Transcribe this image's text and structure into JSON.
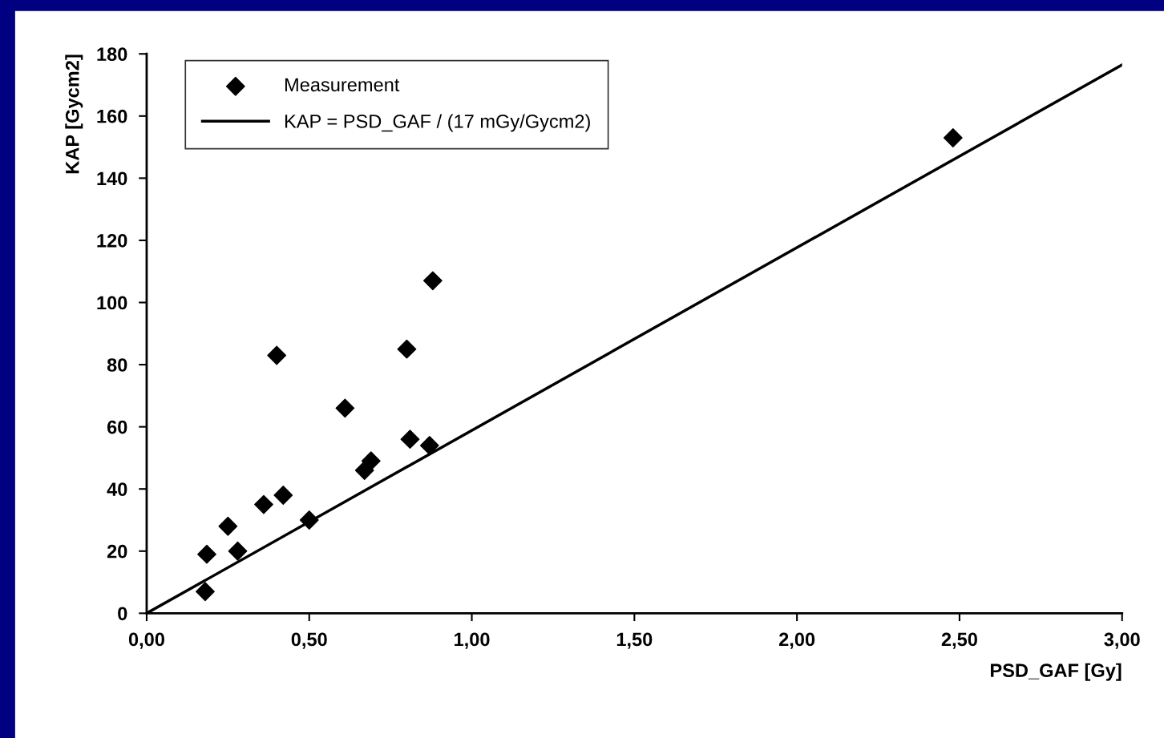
{
  "chart_data": {
    "type": "scatter",
    "xlabel": "PSD_GAF [Gy]",
    "ylabel": "KAP [Gycm2]",
    "xlim": [
      0,
      3
    ],
    "ylim": [
      0,
      180
    ],
    "xticks": [
      {
        "value": 0,
        "label": "0,00"
      },
      {
        "value": 0.5,
        "label": "0,50"
      },
      {
        "value": 1,
        "label": "1,00"
      },
      {
        "value": 1.5,
        "label": "1,50"
      },
      {
        "value": 2,
        "label": "2,00"
      },
      {
        "value": 2.5,
        "label": "2,50"
      },
      {
        "value": 3,
        "label": "3,00"
      }
    ],
    "yticks": [
      0,
      20,
      40,
      60,
      80,
      100,
      120,
      140,
      160,
      180
    ],
    "grid": false,
    "legend": "top left",
    "series": [
      {
        "name": "Measurement",
        "marker": "diamond",
        "color": "#000000",
        "x": [
          0.18,
          0.185,
          0.25,
          0.28,
          0.36,
          0.4,
          0.42,
          0.5,
          0.61,
          0.67,
          0.69,
          0.8,
          0.81,
          0.87,
          0.88,
          2.48
        ],
        "values": [
          7,
          19,
          28,
          20,
          35,
          83,
          38,
          30,
          66,
          46,
          49,
          85,
          56,
          54,
          107,
          153
        ]
      },
      {
        "name": "KAP = PSD_GAF / (17 mGy/Gycm2)",
        "type": "line",
        "marker": "none",
        "color": "#000000",
        "x": [
          0,
          3
        ],
        "values": [
          0,
          176.5
        ]
      }
    ]
  }
}
